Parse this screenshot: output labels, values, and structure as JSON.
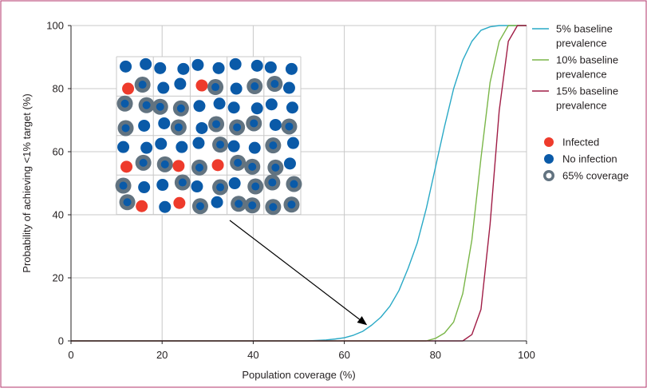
{
  "chart_data": {
    "type": "line",
    "xlabel": "Population coverage (%)",
    "ylabel": "Probability of achieving <1% target (%)",
    "xlim": [
      0,
      100
    ],
    "ylim": [
      0,
      100
    ],
    "x_ticks": [
      0,
      20,
      40,
      60,
      80,
      100
    ],
    "y_ticks": [
      0,
      20,
      40,
      60,
      80,
      100
    ],
    "grid": true,
    "legend_position": "right",
    "series": [
      {
        "name": "5% baseline prevalence",
        "name_lines": [
          "5% baseline",
          "prevalence"
        ],
        "color": "#29a9c6",
        "x": [
          0,
          52,
          56,
          58,
          60,
          62,
          64,
          66,
          68,
          70,
          72,
          74,
          76,
          78,
          80,
          82,
          84,
          86,
          88,
          90,
          92,
          94,
          96,
          100
        ],
        "y": [
          0,
          0,
          0.3,
          0.6,
          1,
          1.8,
          3,
          5,
          7.5,
          11,
          16,
          23,
          31,
          42,
          55,
          68,
          80,
          89,
          95,
          98.5,
          99.6,
          100,
          100,
          100
        ]
      },
      {
        "name": "10% baseline prevalence",
        "name_lines": [
          "10% baseline",
          "prevalence"
        ],
        "color": "#7ab648",
        "x": [
          0,
          78,
          80,
          82,
          84,
          86,
          88,
          90,
          92,
          94,
          96,
          100
        ],
        "y": [
          0,
          0,
          0.8,
          2.5,
          6,
          15,
          32,
          58,
          82,
          95,
          100,
          100
        ]
      },
      {
        "name": "15% baseline prevalence",
        "name_lines": [
          "15% baseline",
          "prevalence"
        ],
        "color": "#a01d46",
        "x": [
          0,
          86,
          88,
          90,
          92,
          94,
          96,
          98,
          100
        ],
        "y": [
          0,
          0,
          2,
          10,
          37,
          73,
          95,
          100,
          100
        ]
      }
    ],
    "inset_legend": [
      {
        "label": "Infected",
        "marker": "infected"
      },
      {
        "label": "No infection",
        "marker": "healthy"
      },
      {
        "label": "65% coverage",
        "marker": "covered"
      }
    ],
    "inset_grid": {
      "rows": [
        [
          "H",
          "H",
          "H",
          "H",
          "H",
          "H",
          "H",
          "H",
          "H",
          "H"
        ],
        [
          "I",
          "CH",
          "H",
          "H",
          "I",
          "CH",
          "H",
          "CH",
          "CH",
          "H"
        ],
        [
          "CH",
          "CH",
          "CH",
          "CH",
          "H",
          "H",
          "H",
          "H",
          "H",
          "H"
        ],
        [
          "CH",
          "H",
          "H",
          "CH",
          "H",
          "CH",
          "CH",
          "CH",
          "H",
          "CH"
        ],
        [
          "H",
          "H",
          "H",
          "H",
          "H",
          "CH",
          "H",
          "H",
          "CH",
          "H"
        ],
        [
          "I",
          "CH",
          "CH",
          "I",
          "CH",
          "I",
          "CH",
          "CH",
          "CH",
          "H"
        ],
        [
          "CH",
          "H",
          "H",
          "CH",
          "H",
          "CH",
          "H",
          "CH",
          "CH",
          "CH"
        ],
        [
          "CH",
          "I",
          "H",
          "I",
          "CH",
          "H",
          "CH",
          "CH",
          "CH",
          "CH"
        ]
      ]
    },
    "colors": {
      "infected": "#ee3b2c",
      "healthy": "#0a5aa8",
      "coverage_ring": "#627380",
      "grid": "#c8c8c8",
      "frame": "#b3366b",
      "arrow": "#000000"
    },
    "arrow_from_inset_to": {
      "x": 65,
      "y": 5
    }
  }
}
